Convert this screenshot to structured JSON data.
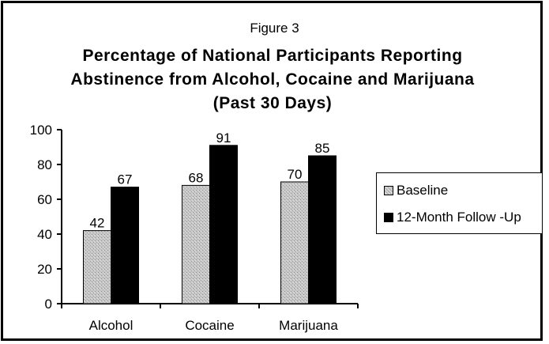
{
  "figure_label": "Figure 3",
  "colors": {
    "baseline": "#bdbdbd",
    "followup": "#000000"
  },
  "chart_data": {
    "type": "bar",
    "title": "Percentage of National Participants Reporting Abstinence from Alcohol, Cocaine and Marijuana (Past 30 Days)",
    "xlabel": "",
    "ylabel": "",
    "categories": [
      "Alcohol",
      "Cocaine",
      "Marijuana"
    ],
    "series": [
      {
        "name": "Baseline",
        "values": [
          42,
          68,
          70
        ]
      },
      {
        "name": "12-Month Follow -Up",
        "values": [
          67,
          91,
          85
        ]
      }
    ],
    "ylim": [
      0,
      100
    ],
    "yticks": [
      0,
      20,
      40,
      60,
      80,
      100
    ],
    "grid": false,
    "legend": "right"
  }
}
